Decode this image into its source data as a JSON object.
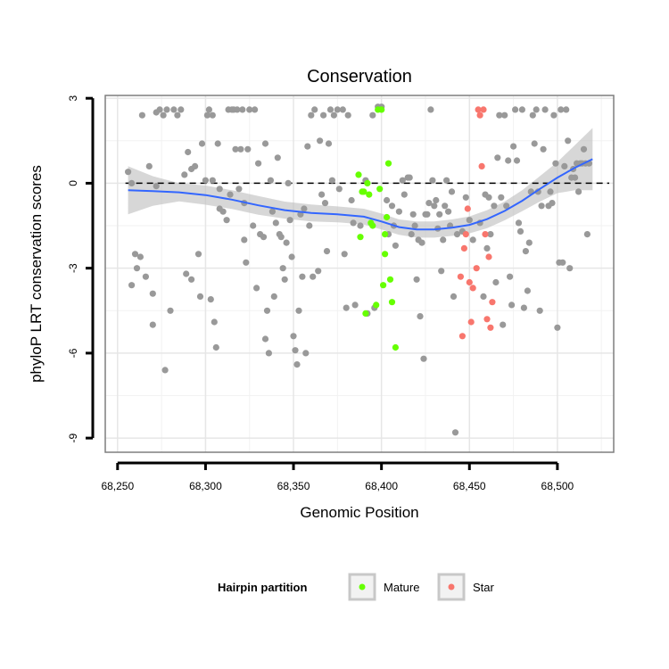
{
  "chart_data": {
    "type": "scatter",
    "title": "Conservation",
    "xlabel": "Genomic Position",
    "ylabel": "phyloP LRT conservation scores",
    "xlim": [
      68243,
      68532
    ],
    "ylim": [
      -9.5,
      3.1
    ],
    "x_ticks": [
      68250,
      68300,
      68350,
      68400,
      68450,
      68500
    ],
    "x_tick_labels": [
      "68,250",
      "68,300",
      "68,350",
      "68,400",
      "68,450",
      "68,500"
    ],
    "y_ticks": [
      3,
      0,
      -3,
      -6,
      -9
    ],
    "y_tick_labels": [
      "3",
      "0",
      "-3",
      "-6",
      "-9"
    ],
    "reference_line": {
      "y": 0,
      "style": "dashed"
    },
    "grid": true,
    "colors": {
      "Other": "#999999",
      "Mature": "#66FF00",
      "Star": "#F8766D",
      "smooth": "#3366FF",
      "band": "#BEBEBE",
      "frame": "#7f7f7f"
    },
    "legend": {
      "title": "Hairpin partition",
      "position": "bottom",
      "entries": [
        {
          "label": "Mature",
          "color": "#66FF00"
        },
        {
          "label": "Star",
          "color": "#F8766D"
        }
      ]
    },
    "series": [
      {
        "group": "Other",
        "points": [
          [
            68256,
            0.4
          ],
          [
            68258,
            0.0
          ],
          [
            68258,
            -3.6
          ],
          [
            68260,
            -2.5
          ],
          [
            68261,
            -3.0
          ],
          [
            68263,
            -2.6
          ],
          [
            68264,
            2.4
          ],
          [
            68266,
            -3.3
          ],
          [
            68268,
            0.6
          ],
          [
            68270,
            -5.0
          ],
          [
            68270,
            -3.9
          ],
          [
            68272,
            -0.1
          ],
          [
            68272,
            2.5
          ],
          [
            68274,
            2.6
          ],
          [
            68276,
            2.4
          ],
          [
            68277,
            -6.6
          ],
          [
            68278,
            2.6
          ],
          [
            68280,
            -4.5
          ],
          [
            68282,
            2.6
          ],
          [
            68284,
            2.4
          ],
          [
            68286,
            2.6
          ],
          [
            68288,
            0.3
          ],
          [
            68289,
            -3.2
          ],
          [
            68290,
            1.1
          ],
          [
            68292,
            0.5
          ],
          [
            68292,
            -3.4
          ],
          [
            68294,
            0.6
          ],
          [
            68296,
            -2.5
          ],
          [
            68297,
            -4.0
          ],
          [
            68298,
            1.4
          ],
          [
            68300,
            0.1
          ],
          [
            68301,
            2.4
          ],
          [
            68302,
            2.6
          ],
          [
            68303,
            -4.1
          ],
          [
            68304,
            0.1
          ],
          [
            68304,
            2.4
          ],
          [
            68305,
            -4.9
          ],
          [
            68306,
            -5.8
          ],
          [
            68307,
            1.4
          ],
          [
            68308,
            -0.2
          ],
          [
            68308,
            -0.9
          ],
          [
            68310,
            -1.0
          ],
          [
            68312,
            -1.3
          ],
          [
            68313,
            2.6
          ],
          [
            68314,
            -0.4
          ],
          [
            68315,
            2.6
          ],
          [
            68316,
            2.6
          ],
          [
            68317,
            1.2
          ],
          [
            68318,
            2.6
          ],
          [
            68319,
            -0.2
          ],
          [
            68320,
            1.2
          ],
          [
            68321,
            2.6
          ],
          [
            68322,
            -2.0
          ],
          [
            68322,
            -0.7
          ],
          [
            68323,
            -2.8
          ],
          [
            68324,
            1.2
          ],
          [
            68325,
            2.6
          ],
          [
            68327,
            -1.5
          ],
          [
            68328,
            2.6
          ],
          [
            68329,
            -3.7
          ],
          [
            68330,
            0.7
          ],
          [
            68331,
            -1.8
          ],
          [
            68333,
            -1.9
          ],
          [
            68334,
            1.4
          ],
          [
            68334,
            -5.5
          ],
          [
            68335,
            -4.5
          ],
          [
            68336,
            -6.0
          ],
          [
            68337,
            0.1
          ],
          [
            68338,
            -1.0
          ],
          [
            68339,
            -4.0
          ],
          [
            68340,
            -1.4
          ],
          [
            68341,
            0.9
          ],
          [
            68342,
            -1.8
          ],
          [
            68343,
            -1.9
          ],
          [
            68344,
            -3.0
          ],
          [
            68345,
            -3.4
          ],
          [
            68346,
            -2.1
          ],
          [
            68347,
            0.0
          ],
          [
            68348,
            -1.3
          ],
          [
            68349,
            -2.6
          ],
          [
            68350,
            -5.4
          ],
          [
            68351,
            -5.9
          ],
          [
            68352,
            -6.4
          ],
          [
            68353,
            -4.5
          ],
          [
            68354,
            -1.1
          ],
          [
            68355,
            -3.3
          ],
          [
            68356,
            -0.9
          ],
          [
            68357,
            -6.0
          ],
          [
            68358,
            1.3
          ],
          [
            68359,
            -1.5
          ],
          [
            68360,
            2.4
          ],
          [
            68361,
            -3.3
          ],
          [
            68362,
            2.6
          ],
          [
            68364,
            -3.1
          ],
          [
            68365,
            1.5
          ],
          [
            68366,
            -0.4
          ],
          [
            68367,
            2.4
          ],
          [
            68368,
            -0.7
          ],
          [
            68369,
            -2.4
          ],
          [
            68370,
            1.4
          ],
          [
            68371,
            2.6
          ],
          [
            68372,
            0.1
          ],
          [
            68373,
            2.4
          ],
          [
            68375,
            2.6
          ],
          [
            68376,
            -0.2
          ],
          [
            68378,
            2.6
          ],
          [
            68379,
            -2.5
          ],
          [
            68380,
            -4.4
          ],
          [
            68381,
            2.4
          ],
          [
            68383,
            -0.6
          ],
          [
            68384,
            -1.4
          ],
          [
            68385,
            -4.3
          ],
          [
            68388,
            -1.5
          ],
          [
            68391,
            0.1
          ],
          [
            68392,
            -4.6
          ],
          [
            68395,
            2.4
          ],
          [
            68396,
            -4.4
          ],
          [
            68398,
            2.7
          ],
          [
            68400,
            2.7
          ],
          [
            68403,
            -0.6
          ],
          [
            68404,
            -1.8
          ],
          [
            68406,
            -0.8
          ],
          [
            68407,
            -1.5
          ],
          [
            68408,
            -2.2
          ],
          [
            68410,
            -1.0
          ],
          [
            68412,
            0.1
          ],
          [
            68413,
            -0.4
          ],
          [
            68415,
            0.2
          ],
          [
            68416,
            0.2
          ],
          [
            68417,
            -1.8
          ],
          [
            68418,
            -1.1
          ],
          [
            68419,
            -1.5
          ],
          [
            68420,
            -3.4
          ],
          [
            68421,
            -2.0
          ],
          [
            68422,
            -4.7
          ],
          [
            68423,
            -2.1
          ],
          [
            68424,
            -6.2
          ],
          [
            68425,
            -1.1
          ],
          [
            68426,
            -1.1
          ],
          [
            68427,
            -0.7
          ],
          [
            68428,
            2.6
          ],
          [
            68429,
            0.1
          ],
          [
            68430,
            -0.8
          ],
          [
            68431,
            -0.6
          ],
          [
            68432,
            -1.6
          ],
          [
            68433,
            -1.1
          ],
          [
            68434,
            -3.1
          ],
          [
            68435,
            -2.0
          ],
          [
            68436,
            -0.8
          ],
          [
            68437,
            0.1
          ],
          [
            68438,
            -1.0
          ],
          [
            68439,
            -1.5
          ],
          [
            68440,
            -0.3
          ],
          [
            68441,
            -4.0
          ],
          [
            68442,
            -8.8
          ],
          [
            68443,
            -1.8
          ],
          [
            68446,
            -1.7
          ],
          [
            68448,
            -0.5
          ],
          [
            68450,
            -1.3
          ],
          [
            68452,
            -2.0
          ],
          [
            68456,
            -1.4
          ],
          [
            68458,
            -4.0
          ],
          [
            68459,
            -0.4
          ],
          [
            68460,
            -2.3
          ],
          [
            68461,
            -0.5
          ],
          [
            68462,
            -1.8
          ],
          [
            68464,
            -0.8
          ],
          [
            68465,
            -3.5
          ],
          [
            68466,
            0.9
          ],
          [
            68467,
            2.4
          ],
          [
            68468,
            -0.5
          ],
          [
            68469,
            -5.0
          ],
          [
            68470,
            2.4
          ],
          [
            68471,
            -0.8
          ],
          [
            68472,
            0.8
          ],
          [
            68473,
            -3.3
          ],
          [
            68474,
            -4.3
          ],
          [
            68475,
            1.3
          ],
          [
            68476,
            2.6
          ],
          [
            68477,
            0.8
          ],
          [
            68478,
            -1.4
          ],
          [
            68479,
            -1.7
          ],
          [
            68480,
            2.6
          ],
          [
            68481,
            -4.4
          ],
          [
            68482,
            -2.4
          ],
          [
            68483,
            -3.8
          ],
          [
            68484,
            -2.1
          ],
          [
            68485,
            -0.3
          ],
          [
            68486,
            2.4
          ],
          [
            68487,
            1.4
          ],
          [
            68488,
            2.6
          ],
          [
            68489,
            -0.3
          ],
          [
            68490,
            -4.5
          ],
          [
            68491,
            -0.8
          ],
          [
            68492,
            1.2
          ],
          [
            68493,
            2.6
          ],
          [
            68495,
            -0.8
          ],
          [
            68496,
            -0.3
          ],
          [
            68497,
            -0.7
          ],
          [
            68498,
            2.4
          ],
          [
            68499,
            0.7
          ],
          [
            68500,
            -5.1
          ],
          [
            68501,
            -2.8
          ],
          [
            68502,
            2.6
          ],
          [
            68503,
            -2.8
          ],
          [
            68504,
            0.6
          ],
          [
            68505,
            2.6
          ],
          [
            68506,
            1.5
          ],
          [
            68507,
            -3.0
          ],
          [
            68508,
            0.2
          ],
          [
            68509,
            0.5
          ],
          [
            68510,
            0.2
          ],
          [
            68511,
            0.7
          ],
          [
            68512,
            -0.3
          ],
          [
            68513,
            0.7
          ],
          [
            68514,
            0.7
          ],
          [
            68515,
            1.2
          ],
          [
            68516,
            0.7
          ],
          [
            68517,
            -1.8
          ],
          [
            68518,
            0.7
          ]
        ]
      },
      {
        "group": "Mature",
        "points": [
          [
            68387,
            0.3
          ],
          [
            68388,
            -1.9
          ],
          [
            68389,
            -0.3
          ],
          [
            68390,
            -0.3
          ],
          [
            68391,
            -4.6
          ],
          [
            68392,
            0.0
          ],
          [
            68393,
            -0.4
          ],
          [
            68394,
            -1.4
          ],
          [
            68395,
            -1.5
          ],
          [
            68397,
            -4.3
          ],
          [
            68398,
            2.6
          ],
          [
            68399,
            -0.2
          ],
          [
            68400,
            2.6
          ],
          [
            68401,
            -3.6
          ],
          [
            68402,
            -1.8
          ],
          [
            68402,
            -2.5
          ],
          [
            68403,
            -1.2
          ],
          [
            68404,
            0.7
          ],
          [
            68405,
            -3.4
          ],
          [
            68406,
            -4.2
          ],
          [
            68408,
            -5.8
          ]
        ]
      },
      {
        "group": "Star",
        "points": [
          [
            68445,
            -3.3
          ],
          [
            68446,
            -5.4
          ],
          [
            68447,
            -2.3
          ],
          [
            68448,
            -1.8
          ],
          [
            68449,
            -0.9
          ],
          [
            68450,
            -3.5
          ],
          [
            68451,
            -4.9
          ],
          [
            68452,
            -3.7
          ],
          [
            68454,
            -3.0
          ],
          [
            68455,
            2.6
          ],
          [
            68456,
            2.4
          ],
          [
            68457,
            0.6
          ],
          [
            68458,
            2.6
          ],
          [
            68459,
            -1.8
          ],
          [
            68460,
            -4.8
          ],
          [
            68461,
            -2.6
          ],
          [
            68462,
            -5.1
          ],
          [
            68463,
            -4.2
          ]
        ]
      }
    ],
    "smooth": {
      "x": [
        68256,
        68270,
        68285,
        68300,
        68315,
        68330,
        68345,
        68360,
        68375,
        68390,
        68400,
        68410,
        68420,
        68430,
        68440,
        68450,
        68460,
        68470,
        68480,
        68490,
        68500,
        68510,
        68520
      ],
      "y": [
        -0.25,
        -0.28,
        -0.32,
        -0.42,
        -0.58,
        -0.78,
        -0.95,
        -1.05,
        -1.1,
        -1.18,
        -1.35,
        -1.55,
        -1.63,
        -1.63,
        -1.57,
        -1.47,
        -1.27,
        -0.98,
        -0.62,
        -0.2,
        0.2,
        0.55,
        0.85
      ],
      "upper": [
        0.6,
        0.25,
        0.0,
        -0.08,
        -0.25,
        -0.45,
        -0.65,
        -0.75,
        -0.82,
        -0.9,
        -1.07,
        -1.28,
        -1.35,
        -1.35,
        -1.28,
        -1.17,
        -0.95,
        -0.65,
        -0.25,
        0.25,
        0.75,
        1.35,
        1.95
      ],
      "lower": [
        -1.1,
        -0.8,
        -0.64,
        -0.76,
        -0.91,
        -1.11,
        -1.25,
        -1.35,
        -1.38,
        -1.46,
        -1.63,
        -1.82,
        -1.92,
        -1.92,
        -1.86,
        -1.77,
        -1.59,
        -1.31,
        -0.99,
        -0.65,
        -0.35,
        -0.25,
        -0.25
      ]
    }
  }
}
